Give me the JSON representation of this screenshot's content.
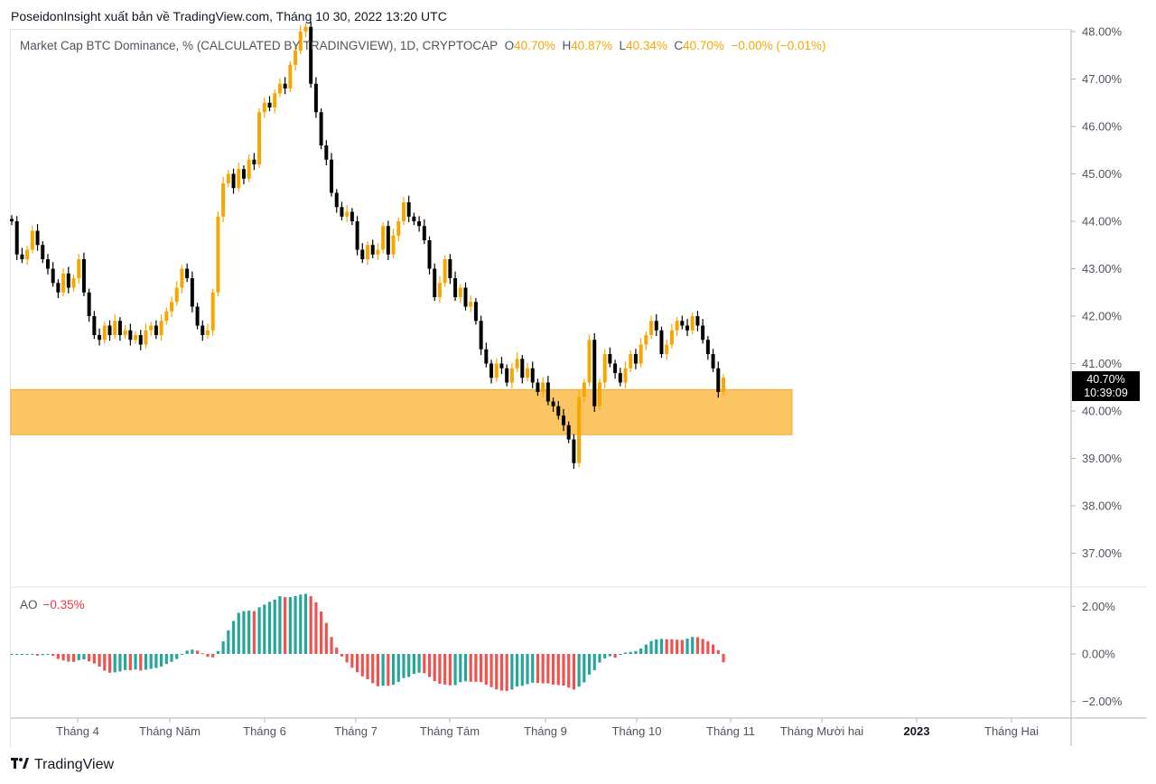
{
  "header": {
    "publisher_line": "PoseidonInsight xuất bản về TradingView.com, Tháng 10 30, 2022 13:20 UTC"
  },
  "legend": {
    "symbol": "Market Cap BTC Dominance, % (CALCULATED BY TRADINGVIEW), 1D, CRYPTOCAP",
    "o_label": "O",
    "o_value": "40.70%",
    "h_label": "H",
    "h_value": "40.87%",
    "l_label": "L",
    "l_value": "40.34%",
    "c_label": "C",
    "c_value": "40.70%",
    "change": "−0.00% (−0.01%)"
  },
  "price_tag": {
    "price": "40.70%",
    "countdown": "10:39:09"
  },
  "ao_legend": {
    "name": "AO",
    "value": "−0.35%"
  },
  "footer": {
    "brand": "TradingView",
    "logo_icon": "tradingview-logo-icon"
  },
  "colors": {
    "up": "#f7a600",
    "down": "#000000",
    "zone": "#fbbf53",
    "ao_up": "#26a69a",
    "ao_down": "#ef5350"
  },
  "chart_data": [
    {
      "type": "candlestick",
      "series_name": "Market Cap BTC Dominance, %",
      "y_ticks": [
        "48.00%",
        "47.00%",
        "46.00%",
        "45.00%",
        "44.00%",
        "43.00%",
        "42.00%",
        "41.00%",
        "40.00%",
        "39.00%",
        "38.00%",
        "37.00%"
      ],
      "ylim": [
        36.3,
        48.1
      ],
      "x_ticks": [
        "Tháng 4",
        "Tháng Năm",
        "Tháng 6",
        "Tháng 7",
        "Tháng Tám",
        "Tháng 9",
        "Tháng 10",
        "Tháng 11",
        "Tháng Mười hai",
        "2023",
        "Tháng Hai"
      ],
      "highlight_zone": {
        "from": 39.5,
        "to": 40.45
      },
      "closes": [
        44.0,
        43.3,
        43.2,
        43.4,
        43.8,
        43.5,
        43.2,
        43.0,
        42.7,
        42.5,
        42.9,
        42.6,
        42.8,
        43.2,
        42.5,
        42.0,
        41.6,
        41.5,
        41.8,
        41.6,
        41.9,
        41.6,
        41.7,
        41.5,
        41.6,
        41.4,
        41.7,
        41.8,
        41.6,
        41.9,
        42.1,
        42.3,
        42.6,
        43.0,
        42.8,
        42.2,
        41.8,
        41.6,
        41.7,
        42.5,
        44.1,
        44.8,
        45.0,
        44.7,
        45.1,
        44.9,
        45.3,
        45.2,
        46.3,
        46.5,
        46.4,
        46.7,
        46.9,
        46.8,
        47.3,
        47.6,
        48.0,
        48.1,
        46.9,
        46.3,
        45.6,
        45.3,
        44.6,
        44.3,
        44.1,
        44.2,
        44.0,
        43.4,
        43.2,
        43.5,
        43.3,
        43.4,
        43.9,
        43.3,
        43.7,
        44.0,
        44.4,
        44.1,
        44.0,
        43.9,
        43.6,
        43.0,
        42.4,
        42.7,
        43.2,
        42.8,
        42.4,
        42.6,
        42.2,
        42.3,
        41.9,
        41.3,
        41.0,
        40.7,
        41.0,
        40.9,
        40.6,
        40.9,
        41.1,
        40.7,
        40.9,
        40.6,
        40.4,
        40.6,
        40.2,
        40.1,
        39.9,
        39.7,
        39.4,
        38.9,
        40.3,
        40.6,
        41.5,
        40.1,
        40.6,
        41.2,
        41.0,
        40.8,
        40.6,
        40.9,
        41.2,
        41.0,
        41.4,
        41.6,
        41.9,
        41.7,
        41.2,
        41.4,
        41.7,
        41.9,
        41.8,
        41.7,
        42.0,
        41.8,
        41.5,
        41.2,
        40.9,
        40.4,
        40.7
      ]
    },
    {
      "type": "bar",
      "series_name": "AO",
      "y_ticks": [
        "2.00%",
        "0.00%",
        "−2.00%"
      ],
      "ylim": [
        -2.4,
        2.6
      ],
      "last_value": -0.35
    }
  ]
}
